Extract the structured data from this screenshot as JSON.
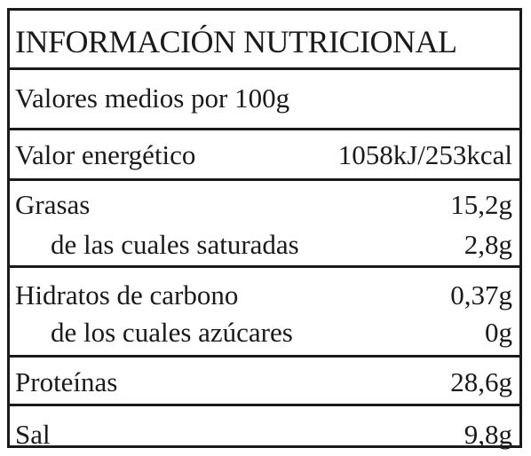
{
  "label": {
    "title": "INFORMACIÓN NUTRICIONAL",
    "subtitle": "Valores medios por 100g",
    "energy": {
      "label": "Valor energético",
      "value": "1058kJ/253kcal"
    },
    "fat": {
      "label": "Grasas",
      "value": "15,2g"
    },
    "saturated": {
      "label": "de las cuales saturadas",
      "value": "2,8g"
    },
    "carbs": {
      "label": "Hidratos de carbono",
      "value": "0,37g"
    },
    "sugars": {
      "label": "de los cuales azúcares",
      "value": "0g"
    },
    "protein": {
      "label": "Proteínas",
      "value": "28,6g"
    },
    "salt": {
      "label": "Sal",
      "value": "9,8g"
    }
  }
}
